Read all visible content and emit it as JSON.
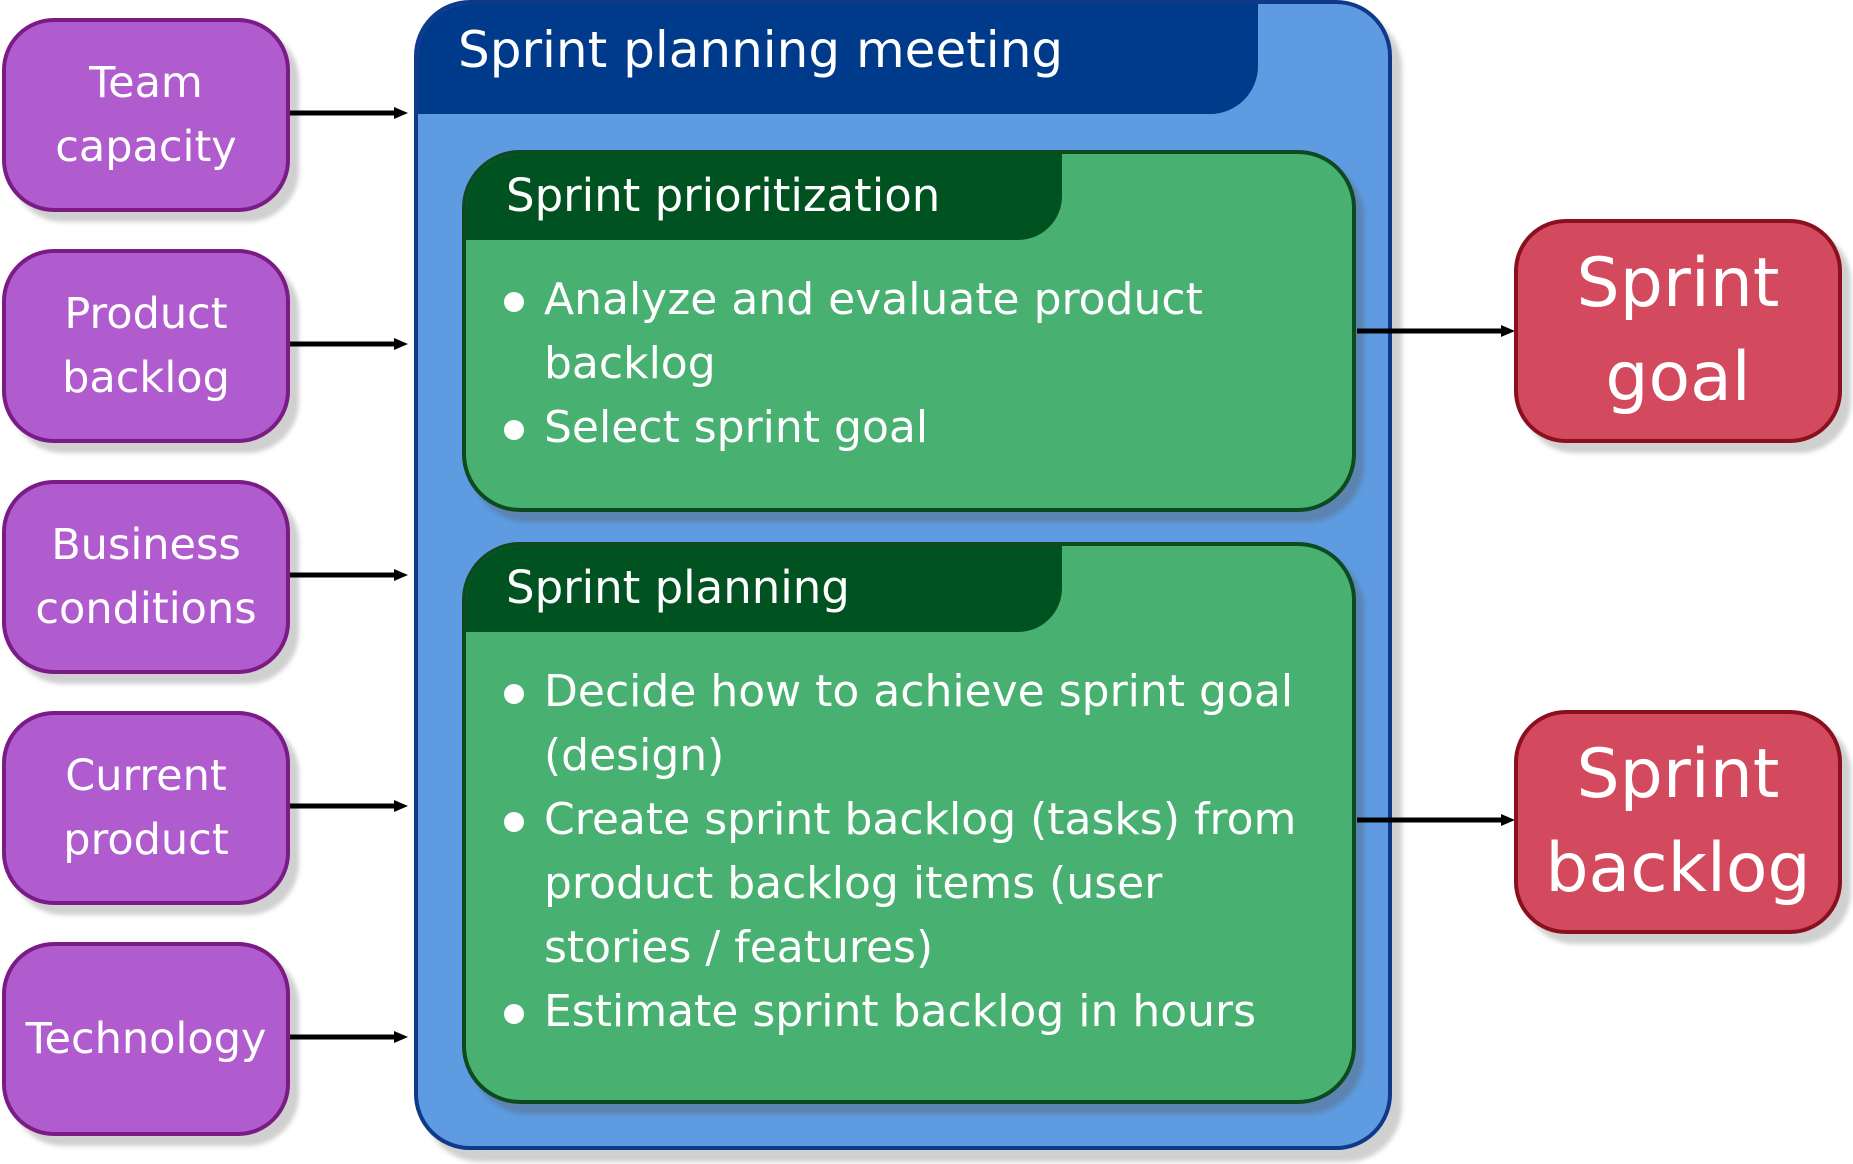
{
  "inputs": [
    {
      "line1": "Team",
      "line2": "capacity"
    },
    {
      "line1": "Product",
      "line2": "backlog"
    },
    {
      "line1": "Business",
      "line2": "conditions"
    },
    {
      "line1": "Current",
      "line2": "product"
    },
    {
      "line1": "Technology",
      "line2": ""
    }
  ],
  "meeting": {
    "title": "Sprint planning meeting"
  },
  "stages": [
    {
      "title": "Sprint prioritization",
      "items": [
        {
          "line1": "Analyze and evaluate product",
          "line2": "backlog",
          "line3": ""
        },
        {
          "line1": "Select sprint goal",
          "line2": "",
          "line3": ""
        }
      ]
    },
    {
      "title": "Sprint planning",
      "items": [
        {
          "line1": "Decide how to achieve sprint goal",
          "line2": "(design)",
          "line3": ""
        },
        {
          "line1": "Create sprint backlog (tasks) from",
          "line2": "product backlog items (user",
          "line3": "stories / features)"
        },
        {
          "line1": "Estimate sprint backlog in hours",
          "line2": "",
          "line3": ""
        }
      ]
    }
  ],
  "outputs": [
    {
      "line1": "Sprint",
      "line2": "goal"
    },
    {
      "line1": "Sprint",
      "line2": "backlog"
    }
  ],
  "colors": {
    "input_fill": "#b05ccf",
    "meeting_fill": "#5e9be0",
    "meeting_header": "#003b8b",
    "stage_fill": "#48b071",
    "stage_header": "#005220",
    "output_fill": "#d3495d"
  }
}
